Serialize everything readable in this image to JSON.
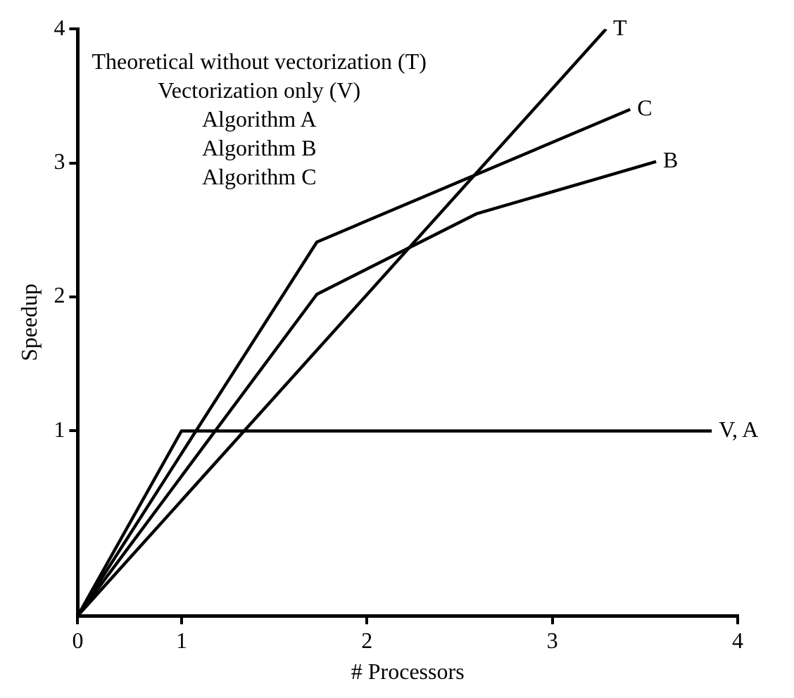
{
  "chart_data": {
    "type": "line",
    "xlabel": "# Processors",
    "ylabel": "Speedup",
    "annotations": [
      "Theoretical without vectorization (T)",
      "Vectorization only (V)",
      "Algorithm A",
      "Algorithm B",
      "Algorithm C"
    ],
    "xlim": [
      0.44,
      4
    ],
    "xticks": [
      {
        "value": 0.44,
        "label": "0"
      },
      1,
      2,
      3,
      4
    ],
    "ylim": [
      -0.38,
      4
    ],
    "yticks": [
      1,
      2,
      3,
      4
    ],
    "series": [
      {
        "name": "T",
        "color": "#000000",
        "x": [
          0.44,
          3.29
        ],
        "values": [
          -0.38,
          4
        ]
      },
      {
        "name": "C",
        "color": "#000000",
        "x": [
          0.44,
          1.73,
          3.42
        ],
        "values": [
          -0.38,
          2.41,
          3.4
        ]
      },
      {
        "name": "B",
        "color": "#000000",
        "x": [
          0.44,
          1.73,
          2.59,
          3.56
        ],
        "values": [
          -0.38,
          2.02,
          2.62,
          3.01
        ]
      },
      {
        "name": "V, A",
        "color": "#000000",
        "x": [
          0.44,
          1,
          3.86
        ],
        "values": [
          -0.38,
          1,
          1
        ]
      }
    ]
  }
}
